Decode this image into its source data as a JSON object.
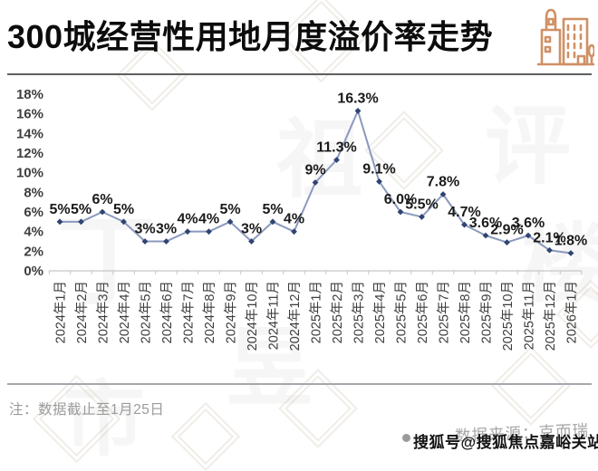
{
  "header": {
    "title": "300城经营性用地月度溢价率走势",
    "icon": "buildings-icon",
    "icon_color": "#d09064"
  },
  "chart_data": {
    "type": "line",
    "title": "300城经营性用地月度溢价率走势",
    "x": [
      "2024年1月",
      "2024年2月",
      "2024年3月",
      "2024年4月",
      "2024年5月",
      "2024年6月",
      "2024年7月",
      "2024年8月",
      "2024年9月",
      "2024年10月",
      "2024年11月",
      "2024年12月",
      "2025年1月",
      "2025年2月",
      "2025年3月",
      "2025年4月",
      "2025年5月",
      "2025年6月",
      "2025年7月",
      "2025年8月",
      "2025年9月",
      "2025年10月",
      "2025年11月",
      "2025年12月",
      "2026年1月"
    ],
    "series": [
      {
        "name": "月度溢价率",
        "values": [
          5,
          5,
          6,
          5,
          3,
          3,
          4,
          4,
          5,
          3,
          5,
          4,
          9,
          11.3,
          16.3,
          9.1,
          6,
          5.5,
          7.8,
          4.7,
          3.6,
          2.9,
          3.6,
          2.1,
          1.8
        ],
        "labels": [
          "5%",
          "5%",
          "6%",
          "5%",
          "3%",
          "3%",
          "4%",
          "4%",
          "5%",
          "3%",
          "5%",
          "4%",
          "9%",
          "11.3%",
          "16.3%",
          "9.1%",
          "6.0%",
          "5.5%",
          "7.8%",
          "4.7%",
          "3.6%",
          "2.9%",
          "3.6%",
          "2.1%",
          "1.8%"
        ]
      }
    ],
    "ylim": [
      0,
      18
    ],
    "ytick_step": 2,
    "ytick_labels": [
      "0%",
      "2%",
      "4%",
      "6%",
      "8%",
      "10%",
      "12%",
      "14%",
      "16%",
      "18%"
    ],
    "xlabel": "",
    "ylabel": "",
    "grid": false,
    "legend": "none",
    "line_color": "#8a99bd",
    "marker_color": "#2f4471",
    "label_color": "#1a1a1a",
    "axis_color": "#c6c6c6",
    "tick_text_color": "#3d3d3d"
  },
  "footer": {
    "note": "注：数据截止至1月25日",
    "source": "数据来源：克而瑞",
    "sohu_watermark": "搜狐号@搜狐焦点嘉峪关站"
  },
  "background_watermark": {
    "glyphs": [
      "丁",
      "祖",
      "评",
      "楼",
      "昱",
      "市"
    ]
  }
}
